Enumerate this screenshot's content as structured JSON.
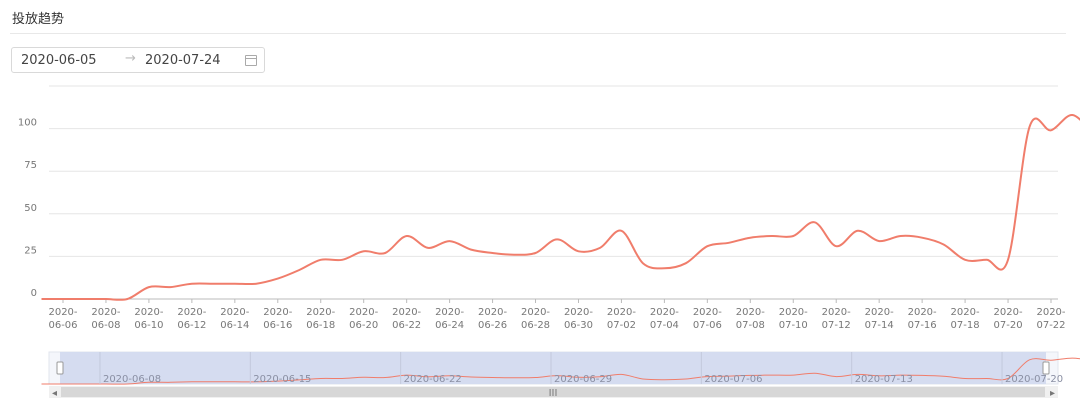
{
  "header": {
    "title": "投放趋势"
  },
  "date_range": {
    "start": "2020-06-05",
    "separator": "→",
    "end": "2020-07-24",
    "icon": "calendar-icon"
  },
  "colors": {
    "line": "#f07d6b",
    "slider_fill": "#d2d9ee",
    "grid": "#e6e6e6"
  },
  "chart_data": {
    "type": "line",
    "title": "",
    "xlabel": "",
    "ylabel": "",
    "ylim": [
      0,
      125
    ],
    "yticks": [
      "0",
      "25",
      "50",
      "75",
      "100"
    ],
    "grid": true,
    "x_tick_labels": [
      "2020-06-06",
      "2020-06-08",
      "2020-06-10",
      "2020-06-12",
      "2020-06-14",
      "2020-06-16",
      "2020-06-18",
      "2020-06-20",
      "2020-06-22",
      "2020-06-24",
      "2020-06-26",
      "2020-06-28",
      "2020-06-30",
      "2020-07-02",
      "2020-07-04",
      "2020-07-06",
      "2020-07-08",
      "2020-07-10",
      "2020-07-12",
      "2020-07-14",
      "2020-07-16",
      "2020-07-18",
      "2020-07-20",
      "2020-07-22"
    ],
    "series": [
      {
        "x": [
          "2020-06-05",
          "2020-06-06",
          "2020-06-07",
          "2020-06-08",
          "2020-06-09",
          "2020-06-10",
          "2020-06-11",
          "2020-06-12",
          "2020-06-13",
          "2020-06-14",
          "2020-06-15",
          "2020-06-16",
          "2020-06-17",
          "2020-06-18",
          "2020-06-19",
          "2020-06-20",
          "2020-06-21",
          "2020-06-22",
          "2020-06-23",
          "2020-06-24",
          "2020-06-25",
          "2020-06-26",
          "2020-06-27",
          "2020-06-28",
          "2020-06-29",
          "2020-06-30",
          "2020-07-01",
          "2020-07-02",
          "2020-07-03",
          "2020-07-04",
          "2020-07-05",
          "2020-07-06",
          "2020-07-07",
          "2020-07-08",
          "2020-07-09",
          "2020-07-10",
          "2020-07-11",
          "2020-07-12",
          "2020-07-13",
          "2020-07-14",
          "2020-07-15",
          "2020-07-16",
          "2020-07-17",
          "2020-07-18",
          "2020-07-19",
          "2020-07-20",
          "2020-07-21",
          "2020-07-22",
          "2020-07-23",
          "2020-07-24"
        ],
        "values": [
          0,
          0,
          0,
          0,
          0,
          7,
          7,
          9,
          9,
          9,
          9,
          12,
          17,
          23,
          23,
          28,
          27,
          37,
          30,
          34,
          29,
          27,
          26,
          27,
          35,
          28,
          30,
          40,
          21,
          18,
          21,
          31,
          33,
          36,
          37,
          37,
          45,
          31,
          40,
          34,
          37,
          36,
          32,
          23,
          23,
          23,
          101,
          99,
          108,
          96
        ]
      }
    ],
    "data_zoom": {
      "labels": [
        "2020-06-08",
        "2020-06-15",
        "2020-06-22",
        "2020-06-29",
        "2020-07-06",
        "2020-07-13",
        "2020-07-20"
      ],
      "handle_label": "III"
    }
  }
}
